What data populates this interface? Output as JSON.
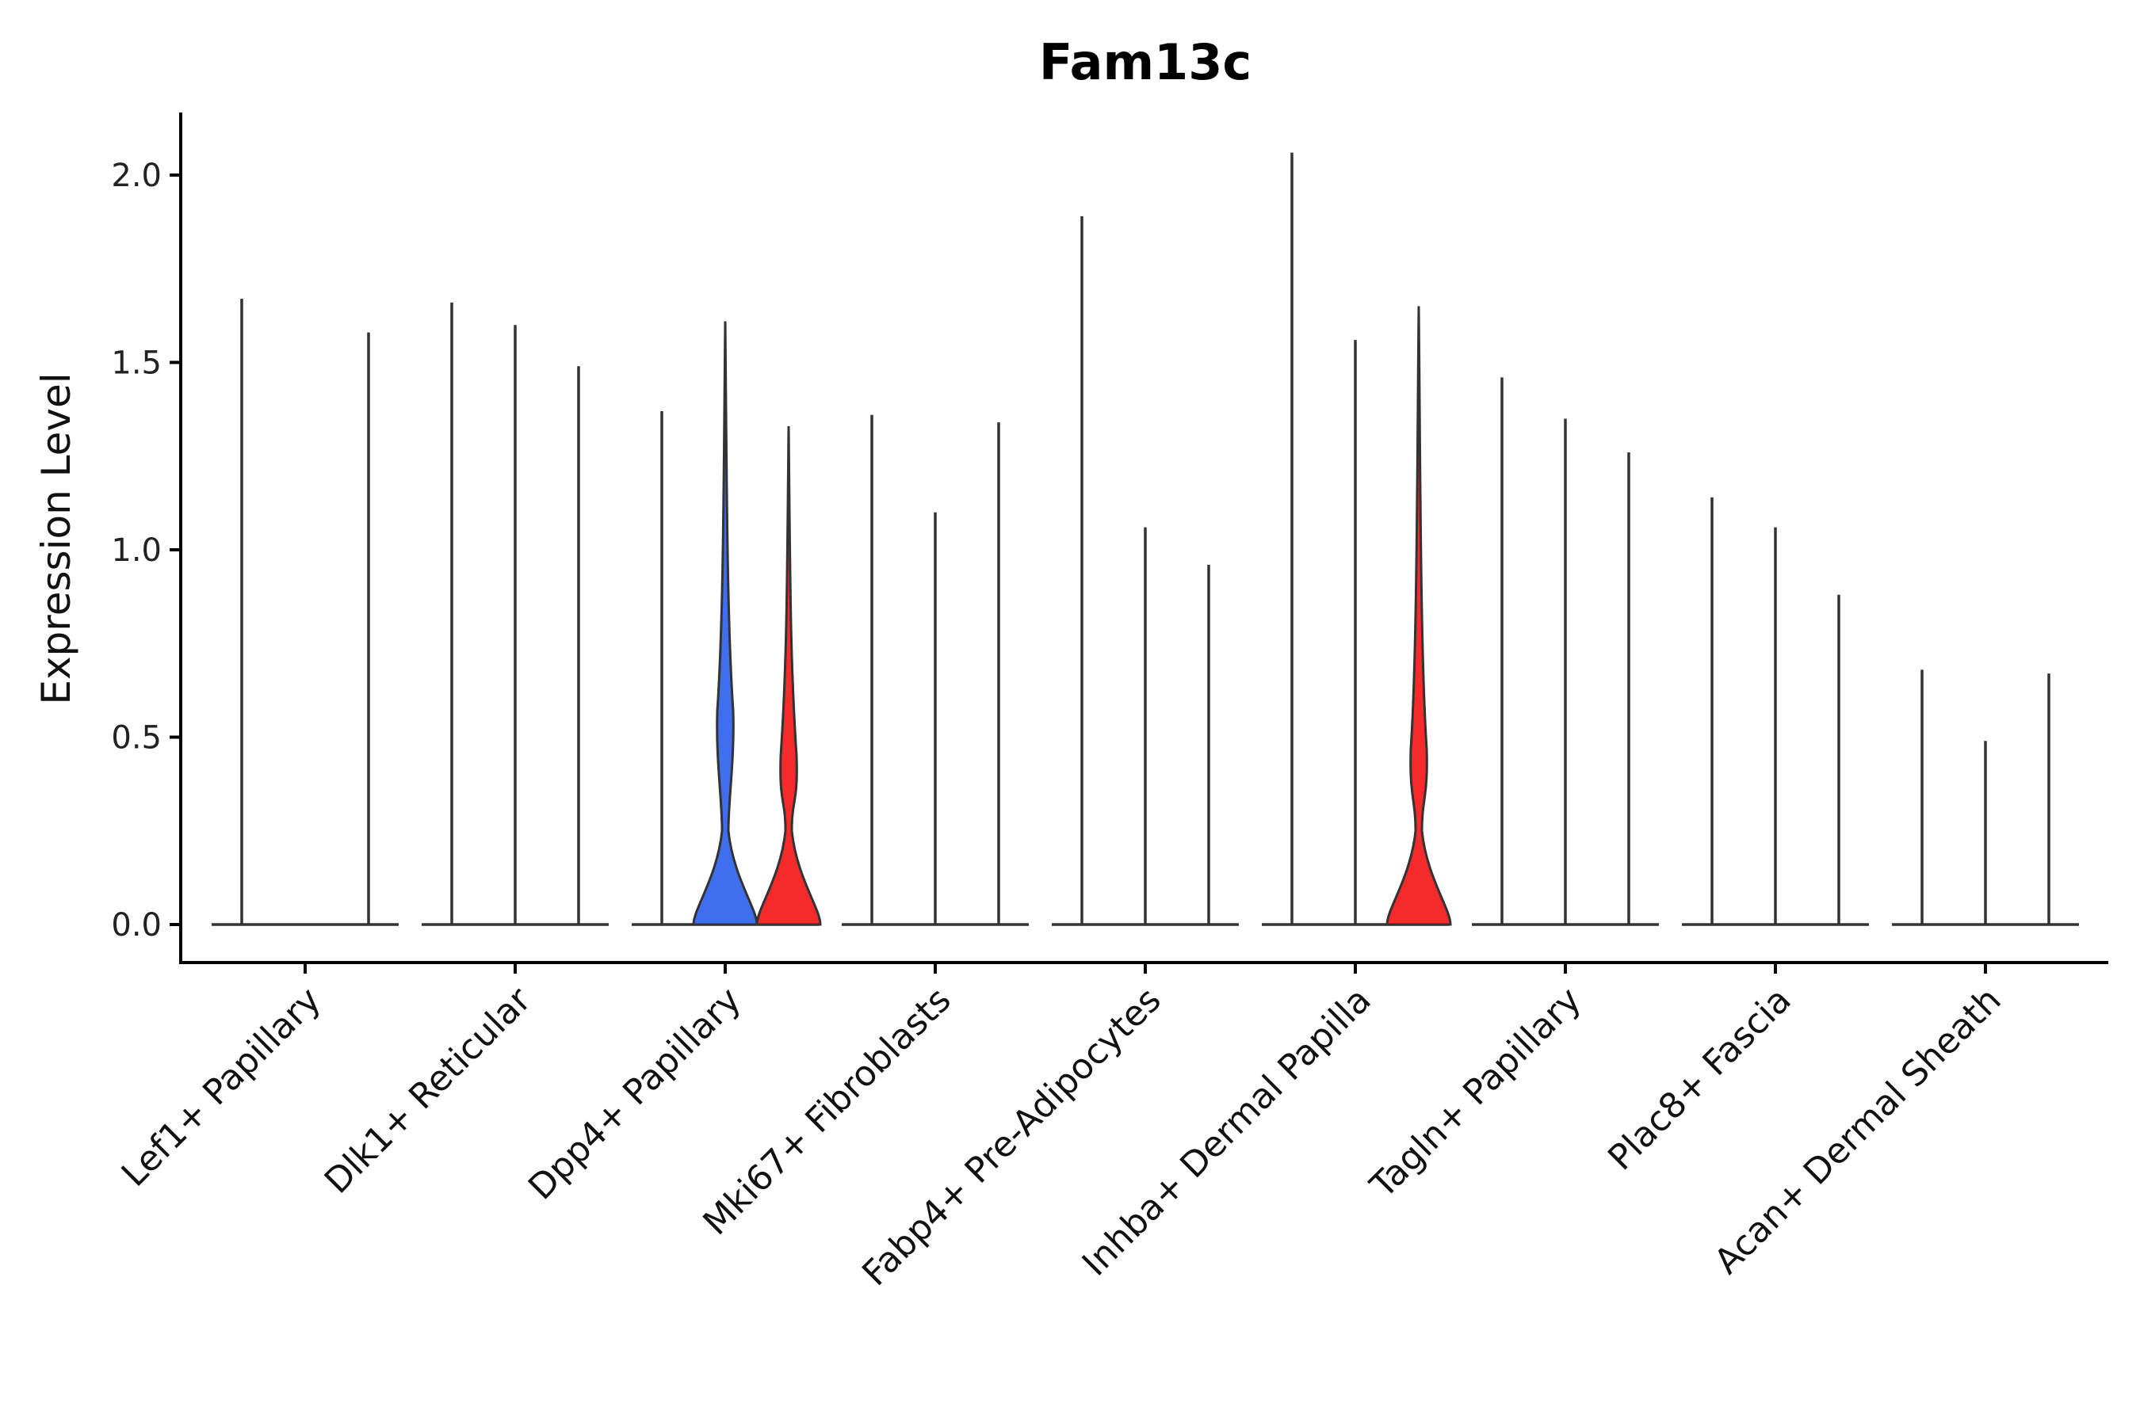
{
  "chart_data": {
    "type": "violin",
    "title": "Fam13c",
    "xlabel": "",
    "ylabel": "Expression Level",
    "ylim": [
      -0.1,
      2.17
    ],
    "yticks": [
      "0.0",
      "0.5",
      "1.0",
      "1.5",
      "2.0"
    ],
    "categories": [
      "Lef1+ Papillary",
      "Dlk1+ Reticular",
      "Dpp4+ Papillary",
      "Mki67+ Fibroblasts",
      "Fabp4+ Pre-Adipocytes",
      "Inhba+ Dermal Papilla",
      "Tagln+ Papillary",
      "Plac8+ Fascia",
      "Acan+ Dermal Sheath"
    ],
    "colors": {
      "blue": "#3f6fef",
      "red": "#f52a2a",
      "line": "#333333",
      "axis": "#000000"
    },
    "violins": [
      {
        "group": 0,
        "slot": 0,
        "max": 1.67,
        "shape": "flat"
      },
      {
        "group": 0,
        "slot": 2,
        "max": 1.58,
        "shape": "flat"
      },
      {
        "group": 1,
        "slot": 0,
        "max": 1.66,
        "shape": "flat"
      },
      {
        "group": 1,
        "slot": 1,
        "max": 1.6,
        "shape": "flat"
      },
      {
        "group": 1,
        "slot": 2,
        "max": 1.49,
        "shape": "flat"
      },
      {
        "group": 2,
        "slot": 0,
        "max": 1.37,
        "shape": "flat"
      },
      {
        "group": 2,
        "slot": 1,
        "max": 1.61,
        "shape": "bimodal",
        "color": "blue",
        "mode2": 0.57
      },
      {
        "group": 2,
        "slot": 2,
        "max": 1.33,
        "shape": "bimodal",
        "color": "red",
        "mode2": 0.45
      },
      {
        "group": 3,
        "slot": 0,
        "max": 1.36,
        "shape": "flat"
      },
      {
        "group": 3,
        "slot": 1,
        "max": 1.1,
        "shape": "flat"
      },
      {
        "group": 3,
        "slot": 2,
        "max": 1.34,
        "shape": "flat"
      },
      {
        "group": 4,
        "slot": 0,
        "max": 1.89,
        "shape": "flat"
      },
      {
        "group": 4,
        "slot": 1,
        "max": 1.06,
        "shape": "flat"
      },
      {
        "group": 4,
        "slot": 2,
        "max": 0.96,
        "shape": "flat"
      },
      {
        "group": 5,
        "slot": 0,
        "max": 2.06,
        "shape": "flat"
      },
      {
        "group": 5,
        "slot": 1,
        "max": 1.56,
        "shape": "flat"
      },
      {
        "group": 5,
        "slot": 2,
        "max": 1.65,
        "shape": "bimodal",
        "color": "red",
        "mode2": 0.47
      },
      {
        "group": 6,
        "slot": 0,
        "max": 1.46,
        "shape": "flat"
      },
      {
        "group": 6,
        "slot": 1,
        "max": 1.35,
        "shape": "flat"
      },
      {
        "group": 6,
        "slot": 2,
        "max": 1.26,
        "shape": "flat"
      },
      {
        "group": 7,
        "slot": 0,
        "max": 1.14,
        "shape": "flat"
      },
      {
        "group": 7,
        "slot": 1,
        "max": 1.06,
        "shape": "flat"
      },
      {
        "group": 7,
        "slot": 2,
        "max": 0.88,
        "shape": "flat"
      },
      {
        "group": 8,
        "slot": 0,
        "max": 0.68,
        "shape": "flat"
      },
      {
        "group": 8,
        "slot": 1,
        "max": 0.49,
        "shape": "flat"
      },
      {
        "group": 8,
        "slot": 2,
        "max": 0.67,
        "shape": "flat"
      }
    ]
  }
}
